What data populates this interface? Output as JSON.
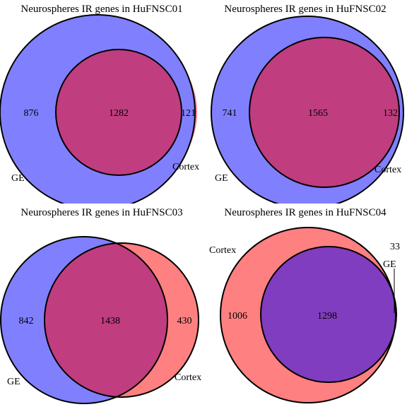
{
  "colors": {
    "ge": "#8080ff",
    "cortex": "#ff8080",
    "overlap_ge_over": "#c03d7f",
    "overlap_cortex_over": "#803dc0",
    "outline": "#000000",
    "background": "#ffffff"
  },
  "panels": [
    {
      "title": "Neurospheres IR genes in HuFNSC01",
      "sets": [
        {
          "name": "GE",
          "only_count": "876"
        },
        {
          "name": "Cortex",
          "only_count": "121"
        }
      ],
      "overlap_count": "1282"
    },
    {
      "title": "Neurospheres IR genes in HuFNSC02",
      "sets": [
        {
          "name": "GE",
          "only_count": "741"
        },
        {
          "name": "Cortex",
          "only_count": "132"
        }
      ],
      "overlap_count": "1565"
    },
    {
      "title": "Neurospheres IR genes in HuFNSC03",
      "sets": [
        {
          "name": "GE",
          "only_count": "842"
        },
        {
          "name": "Cortex",
          "only_count": "430"
        }
      ],
      "overlap_count": "1438"
    },
    {
      "title": "Neurospheres IR genes in HuFNSC04",
      "sets": [
        {
          "name": "Cortex",
          "only_count": "1006"
        },
        {
          "name": "GE",
          "only_count": "33"
        }
      ],
      "overlap_count": "1298"
    }
  ]
}
